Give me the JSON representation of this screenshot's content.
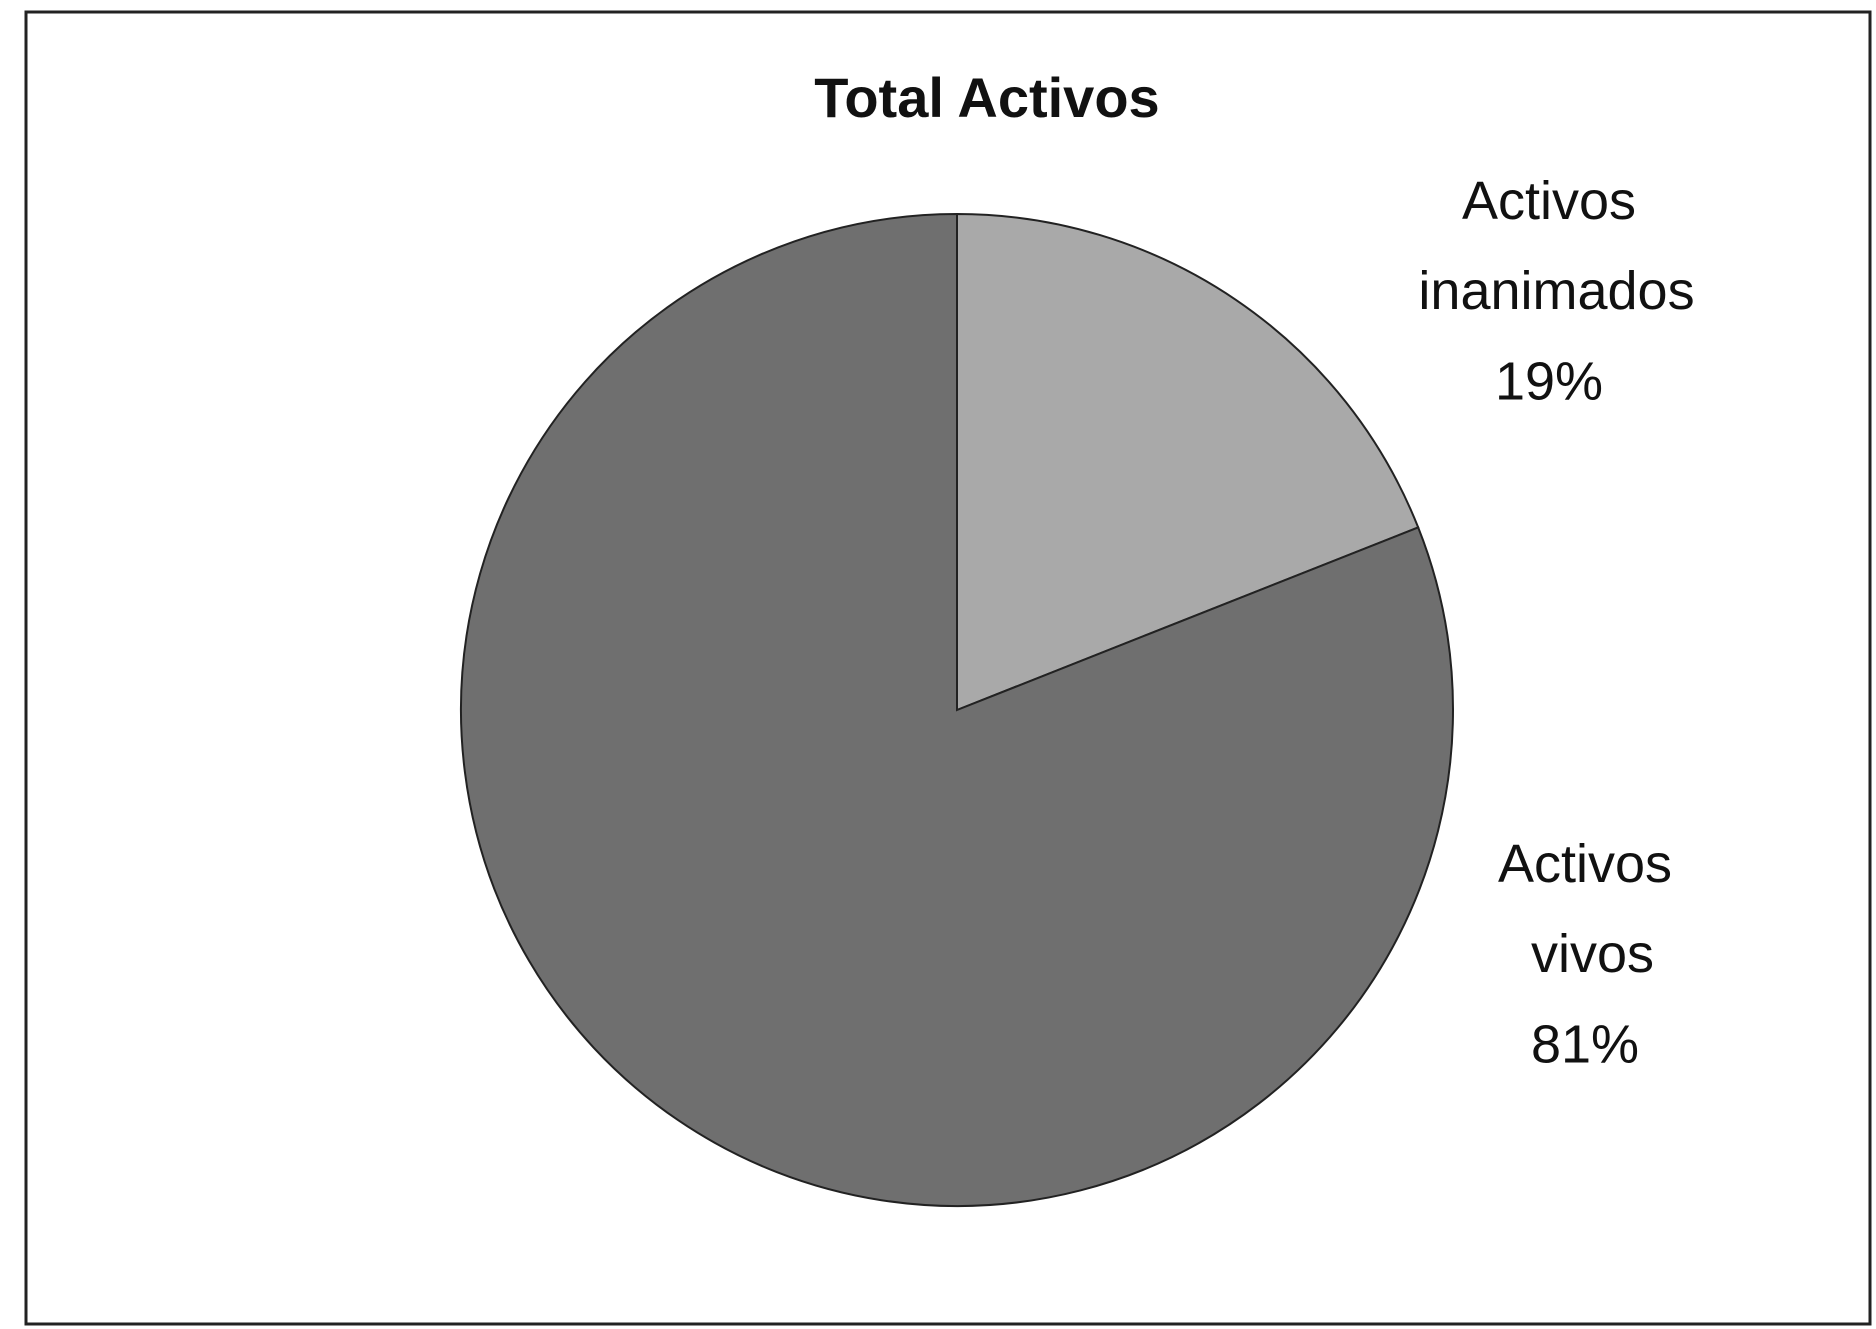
{
  "chart_data": {
    "type": "pie",
    "title": "Total Activos",
    "categories": [
      "Activos inanimados",
      "Activos vivos"
    ],
    "values": [
      19,
      81
    ],
    "value_labels": [
      "19%",
      "81%"
    ],
    "colors": [
      "#a9a9a9",
      "#6f6f6f"
    ]
  }
}
